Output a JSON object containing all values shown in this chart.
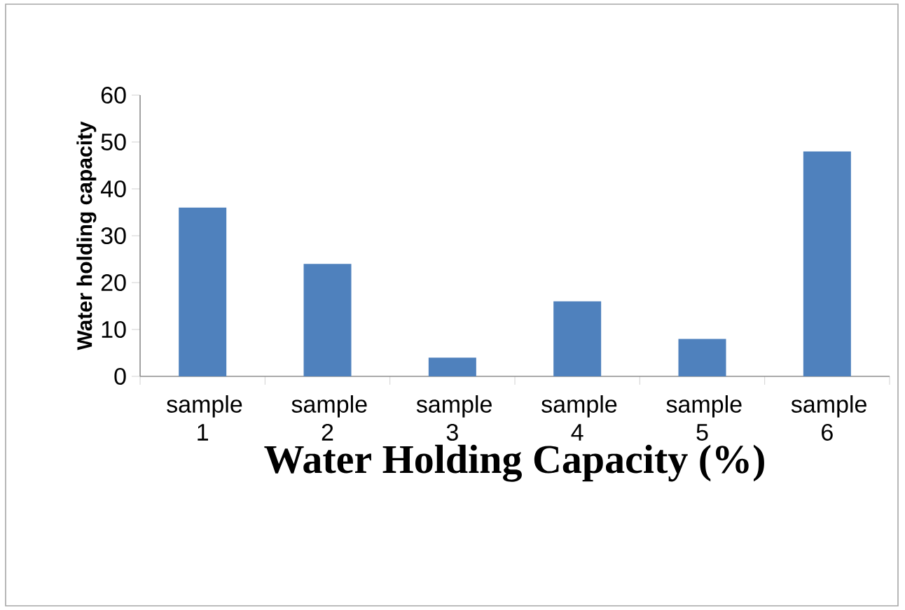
{
  "chart_data": {
    "type": "bar",
    "xlabel": "Water Holding Capacity (%)",
    "ylabel": "Water holding capacity",
    "categories": [
      "sample 1",
      "sample 2",
      "sample 3",
      "sample 4",
      "sample 5",
      "sample 6"
    ],
    "values": [
      36,
      24,
      4,
      16,
      8,
      48
    ],
    "color": "#4f81bd",
    "ylim": [
      0,
      60
    ],
    "yticks": [
      0,
      10,
      20,
      30,
      40,
      50,
      60
    ]
  }
}
